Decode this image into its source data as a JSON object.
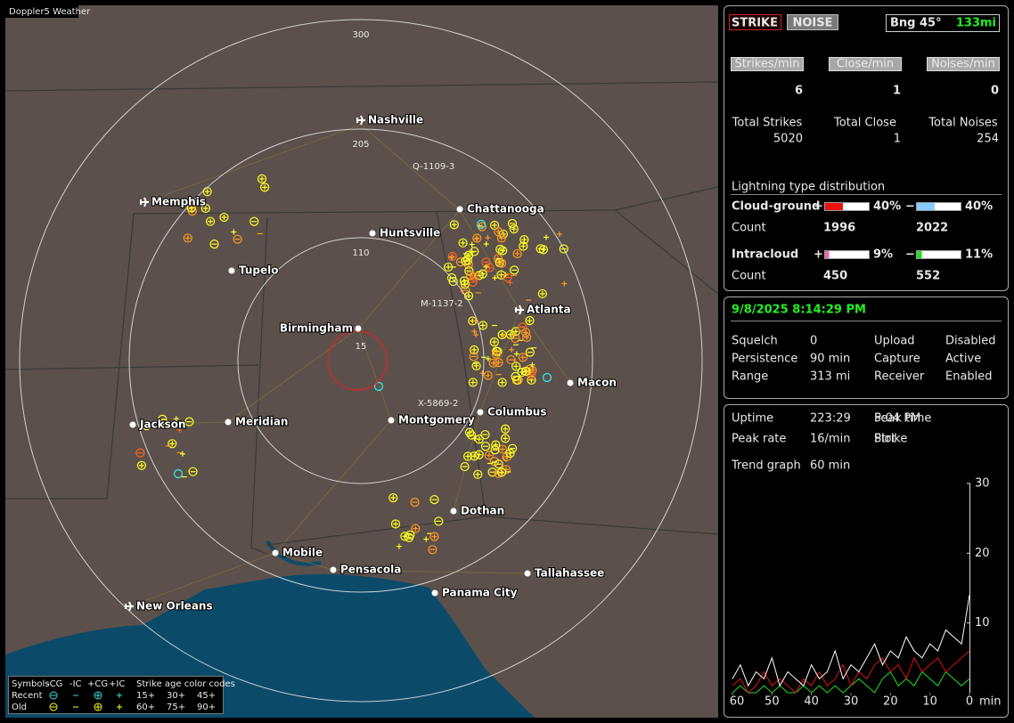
{
  "app": {
    "title": "Doppler5 Weather"
  },
  "map": {
    "rings": [
      "300",
      "205",
      "110",
      "15"
    ],
    "cities": [
      {
        "name": "Nashville",
        "kind": "airport"
      },
      {
        "name": "Memphis",
        "kind": "airport"
      },
      {
        "name": "Chattanooga",
        "kind": "city"
      },
      {
        "name": "Huntsville",
        "kind": "city"
      },
      {
        "name": "Tupelo",
        "kind": "city"
      },
      {
        "name": "Atlanta",
        "kind": "airport"
      },
      {
        "name": "Birmingham",
        "kind": "city"
      },
      {
        "name": "Macon",
        "kind": "city"
      },
      {
        "name": "Jackson",
        "kind": "city"
      },
      {
        "name": "Meridian",
        "kind": "city"
      },
      {
        "name": "Montgomery",
        "kind": "city"
      },
      {
        "name": "Columbus",
        "kind": "city"
      },
      {
        "name": "Dothan",
        "kind": "city"
      },
      {
        "name": "Mobile",
        "kind": "city"
      },
      {
        "name": "Pensacola",
        "kind": "city"
      },
      {
        "name": "Tallahassee",
        "kind": "city"
      },
      {
        "name": "Panama City",
        "kind": "city"
      },
      {
        "name": "New Orleans",
        "kind": "airport"
      }
    ],
    "tracks": [
      "Q-1109-3",
      "M-1137-2",
      "X-5869-2"
    ],
    "legend": {
      "header": [
        "Symbols",
        "-CG",
        "-IC",
        "+CG",
        "+IC",
        "Strike age color codes"
      ],
      "recent": {
        "label": "Recent",
        "ages": [
          "15+",
          "30+",
          "45+"
        ]
      },
      "old": {
        "label": "Old",
        "ages": [
          "60+",
          "75+",
          "90+"
        ]
      }
    }
  },
  "status": {
    "strike": "STRIKE",
    "noise": "NOISE",
    "bearing": "Bng 45°",
    "distance": "133mi"
  },
  "rates": [
    {
      "label": "Strikes/min",
      "value": "6",
      "total_label": "Total Strikes",
      "total": "5020"
    },
    {
      "label": "Close/min",
      "value": "1",
      "total_label": "Total Close",
      "total": "1"
    },
    {
      "label": "Noises/min",
      "value": "0",
      "total_label": "Total Noises",
      "total": "254"
    }
  ],
  "distribution": {
    "title": "Lightning type distribution",
    "count_label": "Count",
    "signs": [
      "+",
      "−"
    ],
    "rows": [
      {
        "name": "Cloud-ground",
        "pos": {
          "value": 40,
          "label": "40%"
        },
        "neg": {
          "value": 40,
          "label": "40%"
        },
        "pos_count": "1996",
        "neg_count": "2022"
      },
      {
        "name": "Intracloud",
        "pos": {
          "value": 9,
          "label": "9%"
        },
        "neg": {
          "value": 11,
          "label": "11%"
        },
        "pos_count": "450",
        "neg_count": "552"
      }
    ]
  },
  "clock": "9/8/2025 8:14:29 PM",
  "settings": [
    {
      "label": "Squelch",
      "value": "0"
    },
    {
      "label": "Persistence",
      "value": "90 min"
    },
    {
      "label": "Range",
      "value": "313 mi"
    },
    {
      "label": "Upload",
      "value": "Disabled"
    },
    {
      "label": "Capture",
      "value": "Active"
    },
    {
      "label": "Receiver",
      "value": "Enabled"
    }
  ],
  "stats": [
    {
      "label": "Uptime",
      "value": "223:29"
    },
    {
      "label": "Peak rate",
      "value": "16/min"
    },
    {
      "label": "Peak time",
      "value": "5:04 PM"
    },
    {
      "label": "Plot",
      "value": "Strike"
    }
  ],
  "trend": {
    "label": "Trend graph",
    "window": "60 min",
    "xunit": "min",
    "ylim": [
      0,
      30
    ],
    "yticks": [
      10,
      20,
      30
    ],
    "xlim": [
      60,
      0
    ],
    "xticks": [
      60,
      50,
      40,
      30,
      20,
      10,
      0
    ],
    "x": [
      60,
      58,
      56,
      54,
      52,
      50,
      48,
      46,
      44,
      42,
      40,
      38,
      36,
      34,
      32,
      30,
      28,
      26,
      24,
      22,
      20,
      18,
      16,
      14,
      12,
      10,
      8,
      6,
      4,
      2,
      0
    ],
    "series": [
      {
        "color": "#ffffff",
        "values": [
          2,
          4,
          1,
          3,
          2,
          5,
          1,
          3,
          2,
          1,
          4,
          2,
          3,
          6,
          2,
          4,
          3,
          5,
          7,
          4,
          6,
          5,
          8,
          6,
          5,
          7,
          6,
          9,
          8,
          7,
          14
        ]
      },
      {
        "color": "#dd1111",
        "values": [
          1,
          2,
          0,
          1,
          3,
          1,
          2,
          1,
          0,
          2,
          1,
          3,
          1,
          2,
          4,
          1,
          3,
          2,
          4,
          5,
          3,
          4,
          2,
          5,
          3,
          4,
          5,
          3,
          4,
          5,
          6
        ]
      },
      {
        "color": "#22dd22",
        "values": [
          0,
          1,
          0,
          0,
          1,
          0,
          1,
          0,
          0,
          1,
          0,
          1,
          0,
          1,
          0,
          1,
          2,
          1,
          0,
          2,
          3,
          1,
          2,
          1,
          3,
          2,
          1,
          3,
          2,
          1,
          2
        ]
      }
    ]
  }
}
